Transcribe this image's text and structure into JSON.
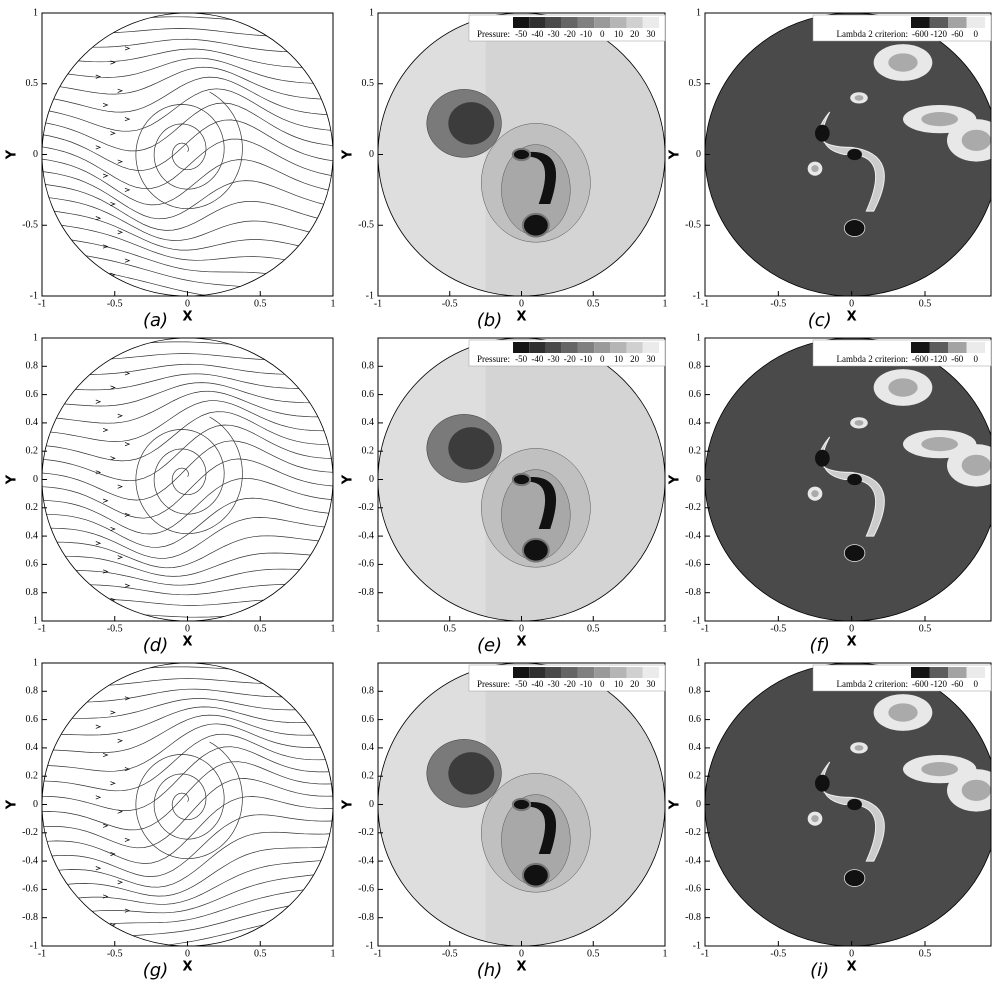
{
  "panels": [
    {
      "kind": "streamlines",
      "caption": "(a)",
      "xlabel": "X",
      "ylabel": "Y",
      "xlim": [
        -1,
        1
      ],
      "ylim": [
        -1,
        1
      ],
      "xticks": [
        -1,
        -0.5,
        0,
        0.5,
        1
      ],
      "yticks": [
        -1,
        -0.5,
        0,
        0.5,
        1
      ]
    },
    {
      "kind": "pressure",
      "caption": "(b)",
      "xlabel": "X",
      "ylabel": "Y",
      "xlim": [
        -1,
        1
      ],
      "ylim": [
        -1,
        1
      ],
      "xticks": [
        -1,
        -0.5,
        0,
        0.5,
        1
      ],
      "yticks": [
        -1,
        -0.5,
        0,
        0.5,
        1
      ],
      "legend": {
        "title": "Pressure:",
        "levels": [
          -50,
          -40,
          -30,
          -20,
          -10,
          0,
          10,
          20,
          30
        ]
      }
    },
    {
      "kind": "lambda",
      "caption": "(c)",
      "xlabel": "X",
      "ylabel": "Y",
      "xlim": [
        -1,
        0.95
      ],
      "ylim": [
        -1,
        1
      ],
      "xticks": [
        -1,
        -0.5,
        0,
        0.5
      ],
      "yticks": [
        -1,
        -0.5,
        0,
        0.5,
        1
      ],
      "legend": {
        "title": "Lambda 2 criterion:",
        "levels": [
          -600,
          -120,
          -60,
          0
        ]
      }
    },
    {
      "kind": "streamlines",
      "caption": "(d)",
      "xlabel": "X",
      "ylabel": "Y",
      "xlim": [
        -1,
        1
      ],
      "ylim": [
        -1,
        1
      ],
      "xticks": [
        -1,
        -0.5,
        0,
        0.5,
        1
      ],
      "yticks": [
        {
          "value": -1,
          "label": "1"
        },
        {
          "value": -0.8,
          "label": "0.8"
        },
        {
          "value": -0.6,
          "label": "0.6"
        },
        {
          "value": -0.4,
          "label": "0.4"
        },
        {
          "value": -0.2,
          "label": "0.2"
        },
        0,
        0.2,
        0.4,
        0.6,
        0.8,
        1
      ]
    },
    {
      "kind": "pressure",
      "caption": "(e)",
      "xlabel": "X",
      "ylabel": "Y",
      "xlim": [
        -1,
        1
      ],
      "ylim": [
        -1,
        1
      ],
      "xticks": [
        {
          "value": -1,
          "label": "1"
        },
        {
          "value": -0.5,
          "label": "0.5"
        },
        0,
        0.5,
        1
      ],
      "yticks": [
        -0.8,
        -0.6,
        -0.4,
        -0.2,
        0,
        0.2,
        0.4,
        0.6,
        0.8
      ],
      "legend": {
        "title": "Pressure:",
        "levels": [
          -50,
          -40,
          -30,
          -20,
          -10,
          0,
          10,
          20,
          30
        ]
      }
    },
    {
      "kind": "lambda",
      "caption": "(f)",
      "xlabel": "X",
      "ylabel": "Y",
      "xlim": [
        -1,
        0.95
      ],
      "ylim": [
        -1,
        1
      ],
      "xticks": [
        -1,
        -0.5,
        0,
        0.5
      ],
      "yticks": [
        -1,
        -0.8,
        -0.6,
        -0.4,
        -0.2,
        0,
        0.2,
        0.4,
        0.6,
        0.8,
        1
      ],
      "legend": {
        "title": "Lambda 2 criterion:",
        "levels": [
          -600,
          -120,
          -60,
          0
        ]
      }
    },
    {
      "kind": "streamlines",
      "caption": "(g)",
      "xlabel": "X",
      "ylabel": "Y",
      "xlim": [
        -1,
        1
      ],
      "ylim": [
        -1,
        1
      ],
      "xticks": [
        -1,
        -0.5,
        0,
        0.5,
        1
      ],
      "yticks": [
        -1,
        -0.8,
        -0.6,
        -0.4,
        -0.2,
        0,
        0.2,
        0.4,
        0.6,
        0.8,
        1
      ]
    },
    {
      "kind": "pressure",
      "caption": "(h)",
      "xlabel": "X",
      "ylabel": "Y",
      "xlim": [
        -1,
        1
      ],
      "ylim": [
        -1,
        1
      ],
      "xticks": [
        -1,
        -0.5,
        0,
        0.5,
        1
      ],
      "yticks": [
        -1,
        -0.8,
        -0.6,
        -0.4,
        -0.2,
        0,
        0.2,
        0.4,
        0.6,
        0.8
      ],
      "legend": {
        "title": "Pressure:",
        "levels": [
          -50,
          -40,
          -30,
          -20,
          -10,
          0,
          10,
          20,
          30
        ]
      }
    },
    {
      "kind": "lambda",
      "caption": "(i)",
      "xlabel": "X",
      "ylabel": "Y",
      "xlim": [
        -1,
        0.95
      ],
      "ylim": [
        -1,
        1
      ],
      "xticks": [
        -1,
        -0.5,
        0,
        0.5
      ],
      "yticks": [
        -1,
        -0.8,
        -0.6,
        -0.4,
        -0.2,
        0,
        0.2,
        0.4,
        0.6,
        0.8,
        1
      ],
      "legend": {
        "title": "Lambda 2 criterion:",
        "levels": [
          -600,
          -120,
          -60,
          0
        ]
      }
    }
  ]
}
